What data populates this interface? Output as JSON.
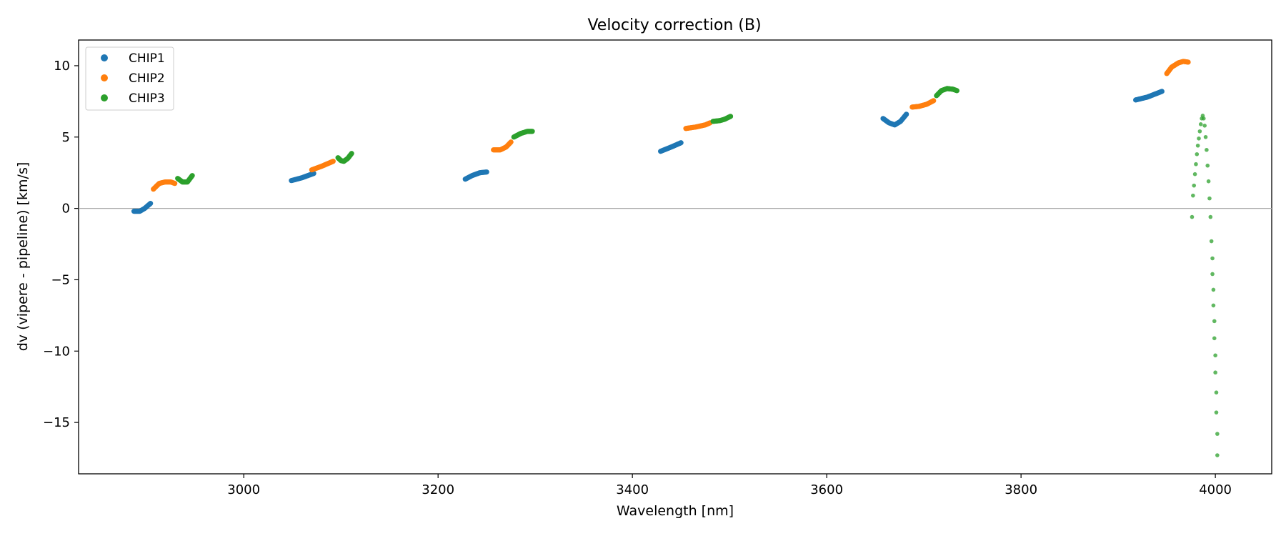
{
  "chart_data": {
    "type": "scatter",
    "title": "Velocity correction (B)",
    "xlabel": "Wavelength [nm]",
    "ylabel": "dv (vipere - pipeline) [km/s]",
    "xlim": [
      2830,
      4058
    ],
    "ylim": [
      -18.6,
      11.8
    ],
    "xticks": [
      3000,
      3200,
      3400,
      3600,
      3800,
      4000
    ],
    "yticks": [
      10,
      5,
      0,
      -5,
      -10,
      -15
    ],
    "ytick_labels": [
      "10",
      "5",
      "0",
      "−5",
      "−10",
      "−15"
    ],
    "reference_line": {
      "y": 0,
      "color": "#aaaaaa"
    },
    "legend": {
      "position": "top-left"
    },
    "grid": false,
    "series": [
      {
        "name": "CHIP1",
        "color": "#1f77b4",
        "segments": [
          [
            [
              2887,
              -0.2
            ],
            [
              2893,
              -0.2
            ],
            [
              2898,
              0.0
            ],
            [
              2904,
              0.35
            ]
          ],
          [
            [
              3049,
              1.95
            ],
            [
              3060,
              2.15
            ],
            [
              3072,
              2.45
            ]
          ],
          [
            [
              3228,
              2.05
            ],
            [
              3235,
              2.3
            ],
            [
              3243,
              2.5
            ],
            [
              3250,
              2.55
            ]
          ],
          [
            [
              3429,
              4.0
            ],
            [
              3440,
              4.3
            ],
            [
              3450,
              4.6
            ]
          ],
          [
            [
              3658,
              6.3
            ],
            [
              3664,
              6.0
            ],
            [
              3670,
              5.85
            ],
            [
              3676,
              6.1
            ],
            [
              3682,
              6.6
            ]
          ],
          [
            [
              3918,
              7.6
            ],
            [
              3930,
              7.8
            ],
            [
              3945,
              8.2
            ]
          ]
        ]
      },
      {
        "name": "CHIP2",
        "color": "#ff7f0e",
        "segments": [
          [
            [
              2907,
              1.35
            ],
            [
              2913,
              1.75
            ],
            [
              2919,
              1.85
            ],
            [
              2925,
              1.85
            ],
            [
              2929,
              1.75
            ]
          ],
          [
            [
              3070,
              2.7
            ],
            [
              3080,
              2.95
            ],
            [
              3092,
              3.3
            ]
          ],
          [
            [
              3257,
              4.1
            ],
            [
              3264,
              4.1
            ],
            [
              3270,
              4.3
            ],
            [
              3275,
              4.65
            ]
          ],
          [
            [
              3455,
              5.6
            ],
            [
              3465,
              5.7
            ],
            [
              3475,
              5.85
            ],
            [
              3480,
              6.0
            ]
          ],
          [
            [
              3688,
              7.1
            ],
            [
              3695,
              7.15
            ],
            [
              3703,
              7.3
            ],
            [
              3710,
              7.55
            ]
          ],
          [
            [
              3950,
              9.45
            ],
            [
              3955,
              9.9
            ],
            [
              3962,
              10.2
            ],
            [
              3967,
              10.3
            ],
            [
              3972,
              10.25
            ]
          ]
        ]
      },
      {
        "name": "CHIP3",
        "color": "#2ca02c",
        "segments": [
          [
            [
              2932,
              2.1
            ],
            [
              2937,
              1.85
            ],
            [
              2942,
              1.85
            ],
            [
              2947,
              2.3
            ]
          ],
          [
            [
              3097,
              3.55
            ],
            [
              3100,
              3.35
            ],
            [
              3103,
              3.3
            ],
            [
              3107,
              3.5
            ],
            [
              3111,
              3.85
            ]
          ],
          [
            [
              3278,
              5.0
            ],
            [
              3285,
              5.25
            ],
            [
              3292,
              5.4
            ],
            [
              3297,
              5.4
            ]
          ],
          [
            [
              3483,
              6.1
            ],
            [
              3490,
              6.15
            ],
            [
              3495,
              6.25
            ],
            [
              3501,
              6.45
            ]
          ],
          [
            [
              3713,
              7.9
            ],
            [
              3718,
              8.25
            ],
            [
              3724,
              8.4
            ],
            [
              3730,
              8.35
            ],
            [
              3734,
              8.25
            ]
          ]
        ],
        "scatter": [
          [
            3976,
            -0.6
          ],
          [
            3977,
            0.9
          ],
          [
            3978,
            1.6
          ],
          [
            3979,
            2.4
          ],
          [
            3980,
            3.1
          ],
          [
            3981,
            3.8
          ],
          [
            3982,
            4.4
          ],
          [
            3983,
            4.9
          ],
          [
            3984,
            5.4
          ],
          [
            3985,
            5.9
          ],
          [
            3986,
            6.3
          ],
          [
            3987,
            6.5
          ],
          [
            3988,
            6.3
          ],
          [
            3989,
            5.8
          ],
          [
            3990,
            5.0
          ],
          [
            3991,
            4.1
          ],
          [
            3992,
            3.0
          ],
          [
            3993,
            1.9
          ],
          [
            3994,
            0.7
          ],
          [
            3995,
            -0.6
          ],
          [
            3996,
            -2.3
          ],
          [
            3997,
            -3.5
          ],
          [
            3997,
            -4.6
          ],
          [
            3998,
            -5.7
          ],
          [
            3998,
            -6.8
          ],
          [
            3999,
            -7.9
          ],
          [
            3999,
            -9.1
          ],
          [
            4000,
            -10.3
          ],
          [
            4000,
            -11.5
          ],
          [
            4001,
            -12.9
          ],
          [
            4001,
            -14.3
          ],
          [
            4002,
            -15.8
          ],
          [
            4002,
            -17.3
          ]
        ]
      }
    ]
  }
}
